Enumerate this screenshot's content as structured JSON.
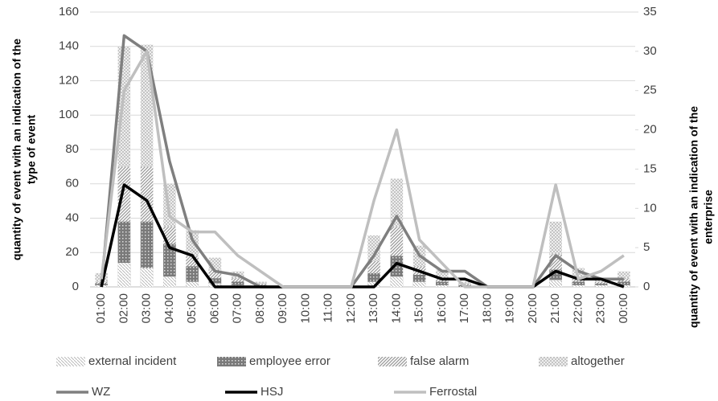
{
  "chart_data": {
    "type": "bar",
    "categories": [
      "01:00",
      "02:00",
      "03:00",
      "04:00",
      "05:00",
      "06:00",
      "07:00",
      "08:00",
      "09:00",
      "10:00",
      "11:00",
      "12:00",
      "13:00",
      "14:00",
      "15:00",
      "16:00",
      "17:00",
      "18:00",
      "19:00",
      "20:00",
      "21:00",
      "22:00",
      "23:00",
      "00:00"
    ],
    "y_label": [
      "quantity of event with an indication of the",
      "type of event"
    ],
    "y2_label": [
      "quantity of event with an indication of the",
      "enterprise"
    ],
    "ylim": [
      0,
      160
    ],
    "yticks": [
      0,
      20,
      40,
      60,
      80,
      100,
      120,
      140,
      160
    ],
    "y2lim": [
      0,
      35
    ],
    "y2ticks": [
      0,
      5,
      10,
      15,
      20,
      25,
      30,
      35
    ],
    "grid": true,
    "legend": "bottom",
    "series": [
      {
        "name": "external incident",
        "type": "bar",
        "color": "#b0b0b0",
        "values": [
          1,
          14,
          11,
          6,
          3,
          2,
          1,
          0,
          0,
          0,
          0,
          0,
          3,
          6,
          3,
          1,
          0,
          0,
          0,
          0,
          4,
          1,
          1,
          1
        ]
      },
      {
        "name": "employee error",
        "type": "bar",
        "color": "#7a7a7a",
        "values": [
          2,
          38,
          38,
          25,
          12,
          5,
          3,
          1,
          0,
          0,
          0,
          0,
          8,
          18,
          7,
          3,
          1,
          0,
          0,
          0,
          10,
          3,
          2,
          3
        ]
      },
      {
        "name": "false alarm",
        "type": "bar",
        "color": "#999999",
        "values": [
          3,
          70,
          70,
          35,
          18,
          10,
          5,
          2,
          0,
          0,
          0,
          0,
          15,
          35,
          12,
          5,
          2,
          0,
          0,
          0,
          19,
          6,
          3,
          5
        ]
      },
      {
        "name": "altogether",
        "type": "bar",
        "color": "#c4c4c4",
        "values": [
          8,
          140,
          141,
          60,
          33,
          17,
          9,
          3,
          0,
          0,
          0,
          0,
          30,
          63,
          24,
          10,
          3,
          0,
          0,
          0,
          38,
          11,
          5,
          9
        ]
      },
      {
        "name": "WZ",
        "type": "line",
        "axis": "y2",
        "color": "#7f7f7f",
        "values": [
          0,
          32,
          30,
          16,
          6,
          2,
          1.5,
          0,
          0,
          0,
          0,
          0,
          4,
          9,
          4,
          2,
          2,
          0,
          0,
          0,
          4,
          2,
          1,
          1
        ]
      },
      {
        "name": "HSJ",
        "type": "line",
        "axis": "y2",
        "color": "#000000",
        "values": [
          0,
          13,
          11,
          5,
          4,
          0,
          0,
          0,
          0,
          0,
          0,
          0,
          0,
          3,
          2,
          1,
          1,
          0,
          0,
          0,
          2,
          1,
          1,
          0
        ]
      },
      {
        "name": "Ferrostal",
        "type": "line",
        "axis": "y2",
        "color": "#bfbfbf",
        "values": [
          1,
          25,
          30,
          9,
          7,
          7,
          4,
          2,
          0,
          0,
          0,
          0,
          11,
          20,
          6,
          3,
          0,
          0,
          0,
          0,
          13,
          1,
          2,
          4
        ]
      }
    ]
  }
}
